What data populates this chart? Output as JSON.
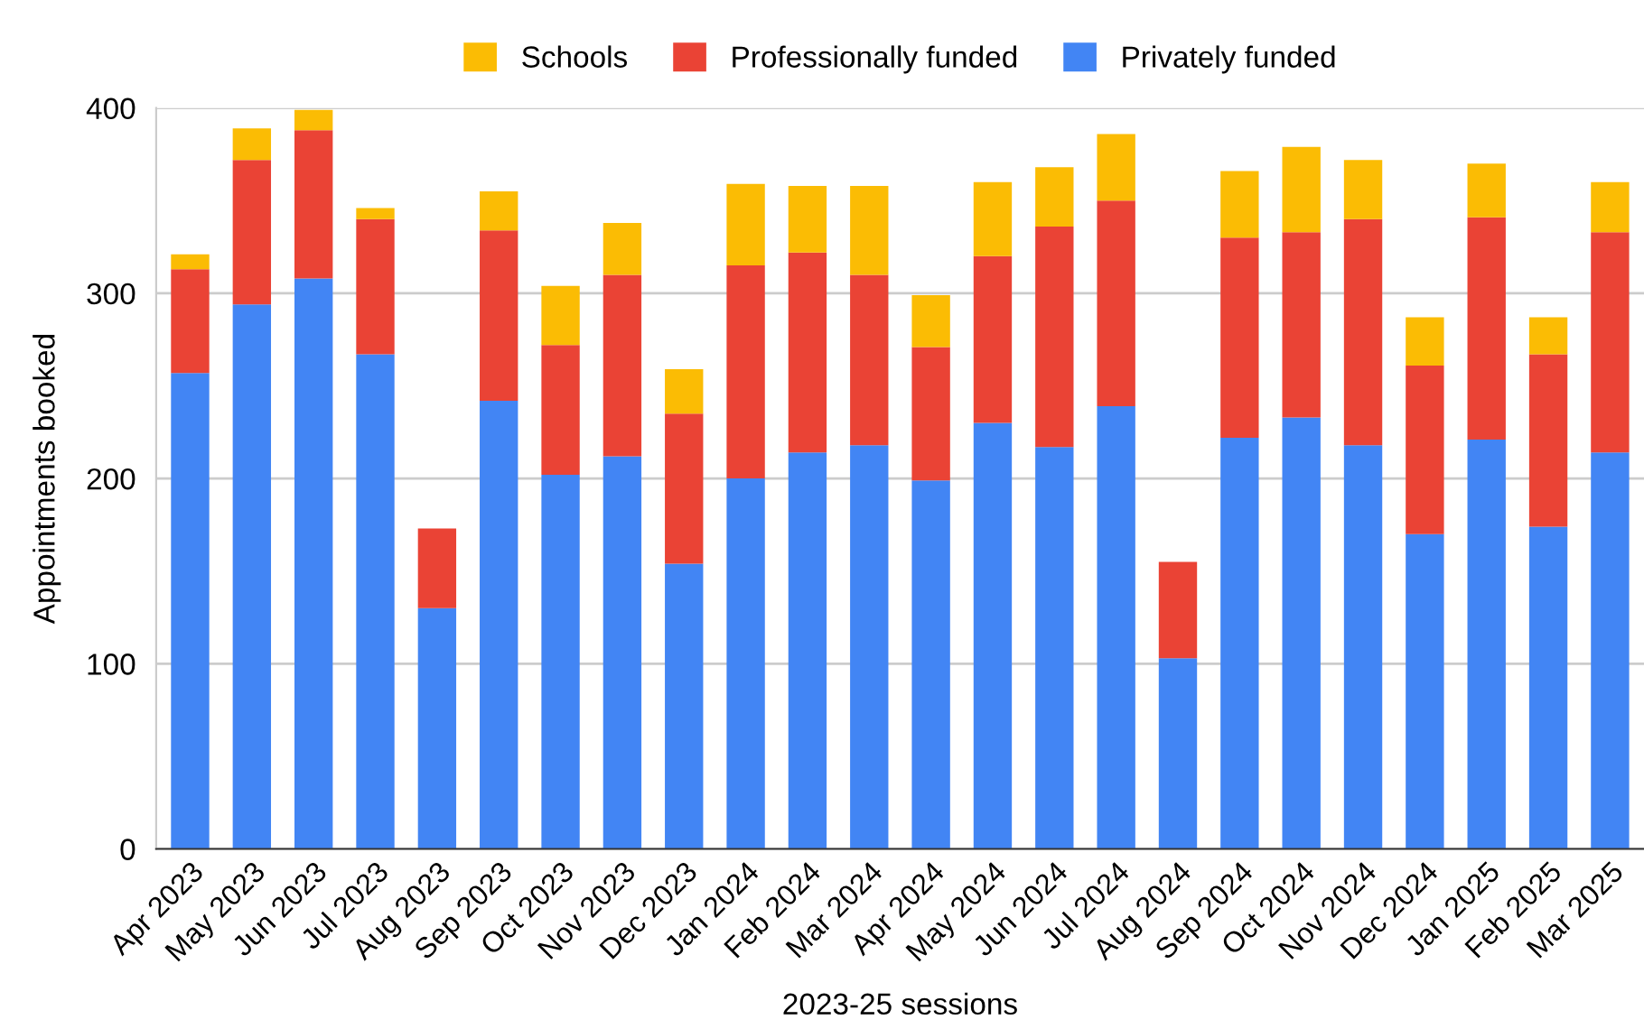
{
  "chart_data": {
    "type": "bar",
    "stacked": true,
    "xlabel": "2023-25 sessions",
    "ylabel": "Appointments booked",
    "categories": [
      "Apr 2023",
      "May 2023",
      "Jun 2023",
      "Jul 2023",
      "Aug 2023",
      "Sep 2023",
      "Oct 2023",
      "Nov 2023",
      "Dec 2023",
      "Jan 2024",
      "Feb 2024",
      "Mar 2024",
      "Apr 2024",
      "May 2024",
      "Jun 2024",
      "Jul 2024",
      "Aug 2024",
      "Sep 2024",
      "Oct 2024",
      "Nov 2024",
      "Dec 2024",
      "Jan 2025",
      "Feb 2025",
      "Mar 2025"
    ],
    "series": [
      {
        "name": "Privately funded",
        "color": "#4285f4",
        "values": [
          257,
          294,
          308,
          267,
          130,
          242,
          202,
          212,
          154,
          200,
          214,
          218,
          199,
          230,
          217,
          239,
          103,
          222,
          233,
          218,
          170,
          221,
          174,
          214
        ]
      },
      {
        "name": "Professionally funded",
        "color": "#ea4335",
        "values": [
          56,
          78,
          80,
          73,
          43,
          92,
          70,
          98,
          81,
          115,
          108,
          92,
          72,
          90,
          119,
          111,
          52,
          108,
          100,
          122,
          91,
          120,
          93,
          119
        ]
      },
      {
        "name": "Schools",
        "color": "#fbbc04",
        "values": [
          8,
          17,
          11,
          6,
          0,
          21,
          32,
          28,
          24,
          44,
          36,
          48,
          28,
          40,
          32,
          36,
          0,
          36,
          46,
          32,
          26,
          29,
          20,
          27
        ]
      }
    ],
    "ylim": [
      0,
      400
    ],
    "yticks": [
      0,
      100,
      200,
      300,
      400
    ],
    "grid": "y",
    "legend": "top"
  }
}
